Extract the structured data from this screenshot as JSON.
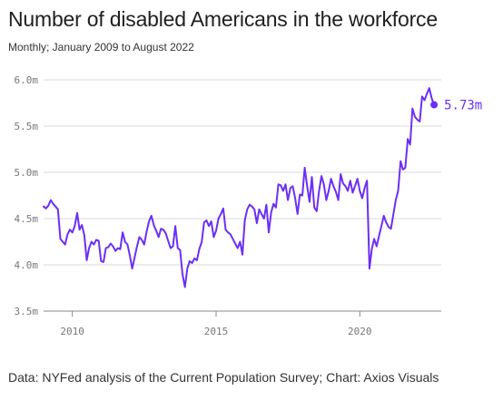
{
  "header": {
    "title": "Number of disabled Americans in the workforce",
    "subtitle": "Monthly; January 2009 to August 2022"
  },
  "footer": {
    "source": "Data: NYFed analysis of the Current Population Survey; Chart: Axios Visuals"
  },
  "colors": {
    "line": "#6b2ff5",
    "grid": "#d9d9d9",
    "axis": "#888888",
    "tick_text": "#777777"
  },
  "chart_data": {
    "type": "line",
    "title": "Number of disabled Americans in the workforce",
    "subtitle": "Monthly; January 2009 to August 2022",
    "xlabel": "",
    "ylabel": "",
    "xlim": [
      2009.0,
      2022.58
    ],
    "ylim": [
      3.5,
      6.0
    ],
    "x_ticks": [
      2010,
      2015,
      2020
    ],
    "x_tick_labels": [
      "2010",
      "2015",
      "2020"
    ],
    "y_ticks": [
      3.5,
      4.0,
      4.5,
      5.0,
      5.5,
      6.0
    ],
    "y_tick_labels": [
      "3.5m",
      "4.0m",
      "4.5m",
      "5.0m",
      "5.5m",
      "6.0m"
    ],
    "grid": "horizontal",
    "end_label": "5.73m",
    "series": [
      {
        "name": "",
        "x": [
          2009.0,
          2009.083,
          2009.167,
          2009.25,
          2009.333,
          2009.417,
          2009.5,
          2009.583,
          2009.667,
          2009.75,
          2009.833,
          2009.917,
          2010.0,
          2010.083,
          2010.167,
          2010.25,
          2010.333,
          2010.417,
          2010.5,
          2010.583,
          2010.667,
          2010.75,
          2010.833,
          2010.917,
          2011.0,
          2011.083,
          2011.167,
          2011.25,
          2011.333,
          2011.417,
          2011.5,
          2011.583,
          2011.667,
          2011.75,
          2011.833,
          2011.917,
          2012.0,
          2012.083,
          2012.167,
          2012.25,
          2012.333,
          2012.417,
          2012.5,
          2012.583,
          2012.667,
          2012.75,
          2012.833,
          2012.917,
          2013.0,
          2013.083,
          2013.167,
          2013.25,
          2013.333,
          2013.417,
          2013.5,
          2013.583,
          2013.667,
          2013.75,
          2013.833,
          2013.917,
          2014.0,
          2014.083,
          2014.167,
          2014.25,
          2014.333,
          2014.417,
          2014.5,
          2014.583,
          2014.667,
          2014.75,
          2014.833,
          2014.917,
          2015.0,
          2015.083,
          2015.167,
          2015.25,
          2015.333,
          2015.417,
          2015.5,
          2015.583,
          2015.667,
          2015.75,
          2015.833,
          2015.917,
          2016.0,
          2016.083,
          2016.167,
          2016.25,
          2016.333,
          2016.417,
          2016.5,
          2016.583,
          2016.667,
          2016.75,
          2016.833,
          2016.917,
          2017.0,
          2017.083,
          2017.167,
          2017.25,
          2017.333,
          2017.417,
          2017.5,
          2017.583,
          2017.667,
          2017.75,
          2017.833,
          2017.917,
          2018.0,
          2018.083,
          2018.167,
          2018.25,
          2018.333,
          2018.417,
          2018.5,
          2018.583,
          2018.667,
          2018.75,
          2018.833,
          2018.917,
          2019.0,
          2019.083,
          2019.167,
          2019.25,
          2019.333,
          2019.417,
          2019.5,
          2019.583,
          2019.667,
          2019.75,
          2019.833,
          2019.917,
          2020.0,
          2020.083,
          2020.167,
          2020.25,
          2020.333,
          2020.417,
          2020.5,
          2020.583,
          2020.667,
          2020.75,
          2020.833,
          2020.917,
          2021.0,
          2021.083,
          2021.167,
          2021.25,
          2021.333,
          2021.417,
          2021.5,
          2021.583,
          2021.667,
          2021.75,
          2021.833,
          2021.917,
          2022.0,
          2022.083,
          2022.167,
          2022.25,
          2022.333,
          2022.417,
          2022.5,
          2022.583
        ],
        "values": [
          4.63,
          4.61,
          4.64,
          4.7,
          4.66,
          4.63,
          4.6,
          4.28,
          4.25,
          4.22,
          4.33,
          4.38,
          4.35,
          4.42,
          4.56,
          4.38,
          4.43,
          4.32,
          4.05,
          4.18,
          4.25,
          4.22,
          4.27,
          4.26,
          4.04,
          4.03,
          4.18,
          4.19,
          4.23,
          4.2,
          4.15,
          4.18,
          4.17,
          4.35,
          4.25,
          4.22,
          4.1,
          3.96,
          4.08,
          4.2,
          4.3,
          4.27,
          4.22,
          4.36,
          4.47,
          4.53,
          4.43,
          4.37,
          4.3,
          4.39,
          4.38,
          4.34,
          4.26,
          4.18,
          4.2,
          4.42,
          4.18,
          4.16,
          3.9,
          3.76,
          3.96,
          4.04,
          4.02,
          4.07,
          4.05,
          4.17,
          4.25,
          4.46,
          4.48,
          4.42,
          4.47,
          4.3,
          4.37,
          4.5,
          4.55,
          4.61,
          4.38,
          4.35,
          4.33,
          4.28,
          4.23,
          4.18,
          4.25,
          4.11,
          4.48,
          4.6,
          4.65,
          4.63,
          4.6,
          4.45,
          4.6,
          4.55,
          4.5,
          4.65,
          4.35,
          4.57,
          4.66,
          4.62,
          4.87,
          4.86,
          4.8,
          4.87,
          4.7,
          4.83,
          4.85,
          4.72,
          4.55,
          4.76,
          4.75,
          5.05,
          4.85,
          4.68,
          4.95,
          4.62,
          4.58,
          4.8,
          4.96,
          4.87,
          4.7,
          4.8,
          4.93,
          4.85,
          4.79,
          4.7,
          4.98,
          4.88,
          4.85,
          4.8,
          4.91,
          4.78,
          4.85,
          4.93,
          4.8,
          4.72,
          4.83,
          4.91,
          3.96,
          4.17,
          4.28,
          4.2,
          4.31,
          4.42,
          4.53,
          4.46,
          4.41,
          4.39,
          4.55,
          4.7,
          4.8,
          5.12,
          5.03,
          5.05,
          5.36,
          5.3,
          5.69,
          5.6,
          5.57,
          5.55,
          5.82,
          5.78,
          5.85,
          5.91,
          5.8,
          5.73
        ]
      }
    ]
  }
}
